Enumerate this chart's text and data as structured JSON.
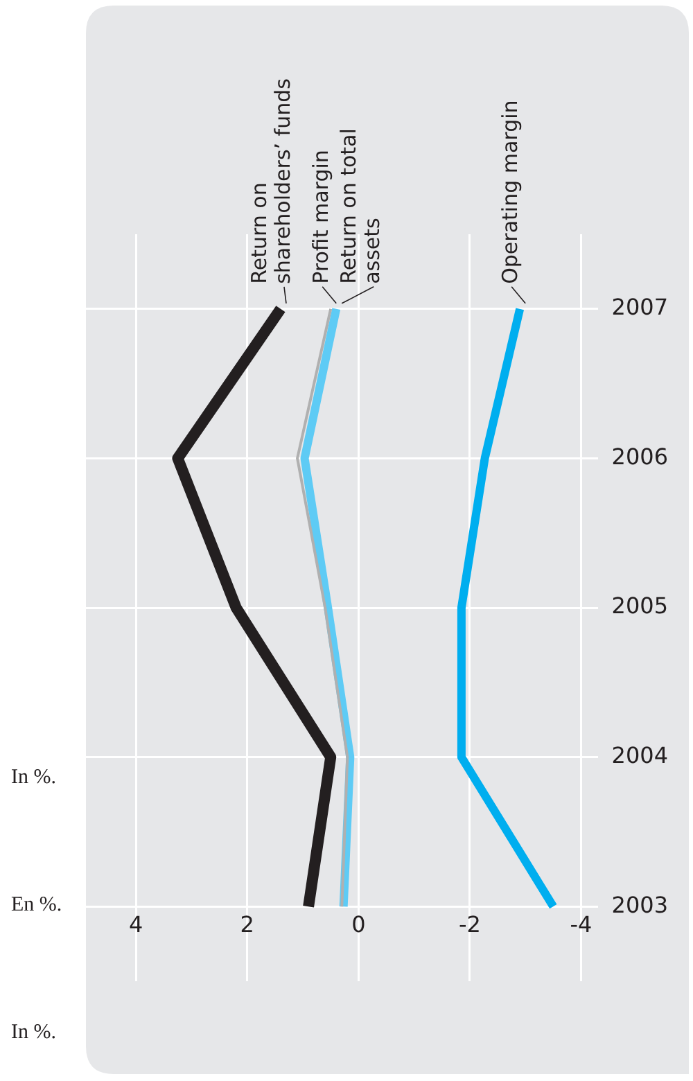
{
  "chart_data": {
    "type": "line",
    "orientation": "horizontal",
    "annotations": [
      "In %.",
      "En %.",
      "In %."
    ],
    "categories": [
      "2007",
      "2006",
      "2005",
      "2004",
      "2003"
    ],
    "xlim": [
      4.9,
      -4.3
    ],
    "xticks": [
      4,
      2,
      0,
      -2,
      -4
    ],
    "grid": true,
    "marker": "none",
    "line_style": "solid",
    "series": [
      {
        "name": "Return on shareholders’ funds",
        "color": "#231f20",
        "values": [
          1.4,
          3.25,
          2.2,
          0.5,
          0.9
        ]
      },
      {
        "name": "Profit margin",
        "color": "#b0b0b0",
        "values": [
          0.5,
          1.1,
          0.6,
          0.2,
          0.3
        ]
      },
      {
        "name": "Return on total assets",
        "color": "#5ecbf5",
        "values": [
          0.4,
          0.97,
          0.55,
          0.15,
          0.27
        ]
      },
      {
        "name": "Operating margin",
        "color": "#00aeef",
        "values": [
          -2.9,
          -2.27,
          -1.85,
          -1.85,
          -3.5
        ]
      }
    ]
  }
}
